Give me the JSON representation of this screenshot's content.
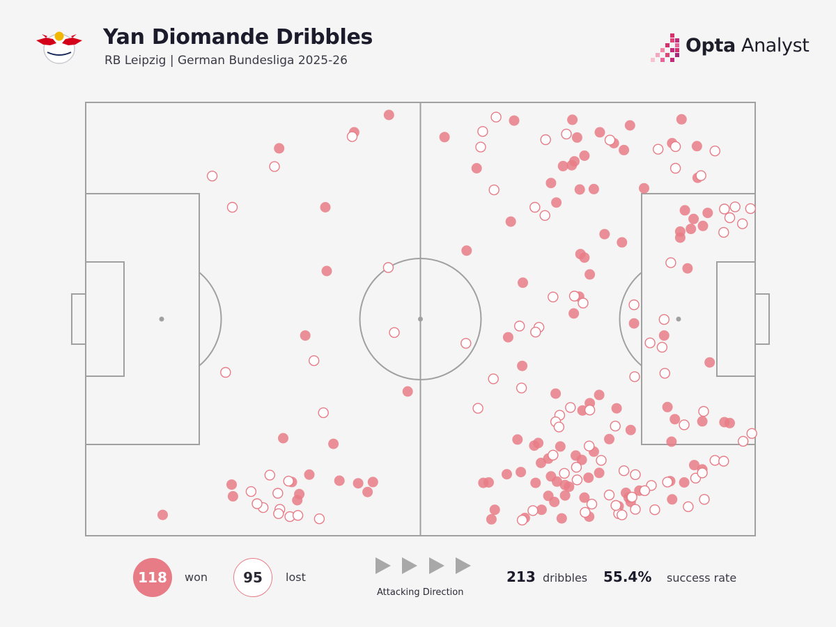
{
  "header": {
    "title": "Yan Diomande Dribbles",
    "subtitle": "RB Leipzig | German Bundesliga 2025-26",
    "club_logo": "rb-leipzig-crest",
    "brand": {
      "part1": "Opta",
      "part2": " Analyst",
      "icon": "opta-pixel-logo"
    }
  },
  "colors": {
    "won_fill": "#e77c86",
    "lost_stroke": "#e77c86",
    "pitch_line": "#a0a0a0",
    "background": "#f5f5f5",
    "brand_magenta": "#cf2f77"
  },
  "footer": {
    "won_count": "118",
    "won_label": "won",
    "lost_count": "95",
    "lost_label": "lost",
    "direction_label": "Attacking Direction",
    "direction_icon": "triangle-right-icon",
    "total_dribbles": "213",
    "total_label": "dribbles",
    "success_rate": "55.4%",
    "success_label": "success rate"
  },
  "chart_data": {
    "type": "scatter",
    "title": "Yan Diomande Dribbles",
    "xlim": [
      0,
      100
    ],
    "ylim": [
      0,
      100
    ],
    "grid": false,
    "series": [
      {
        "name": "won",
        "marker": "filled-circle",
        "points": [
          [
            45.3,
            97.1
          ],
          [
            40.1,
            93.1
          ],
          [
            28.9,
            89.4
          ],
          [
            11.5,
            4.8
          ],
          [
            35.8,
            75.8
          ],
          [
            36.0,
            61.1
          ],
          [
            48.1,
            33.3
          ],
          [
            32.8,
            46.2
          ],
          [
            29.5,
            22.5
          ],
          [
            37.0,
            21.2
          ],
          [
            21.8,
            11.8
          ],
          [
            22.0,
            9.1
          ],
          [
            30.8,
            12.4
          ],
          [
            33.4,
            14.1
          ],
          [
            31.6,
            8.2
          ],
          [
            31.9,
            9.6
          ],
          [
            37.9,
            12.7
          ],
          [
            40.7,
            12.1
          ],
          [
            42.9,
            12.4
          ],
          [
            42.1,
            10.1
          ],
          [
            53.6,
            92.0
          ],
          [
            64.0,
            95.8
          ],
          [
            72.7,
            96.0
          ],
          [
            76.8,
            93.1
          ],
          [
            89.0,
            96.1
          ],
          [
            81.3,
            94.7
          ],
          [
            73.4,
            91.9
          ],
          [
            78.9,
            90.6
          ],
          [
            80.4,
            89.0
          ],
          [
            74.5,
            87.7
          ],
          [
            72.6,
            85.5
          ],
          [
            71.3,
            85.3
          ],
          [
            73.0,
            86.4
          ],
          [
            87.6,
            90.6
          ],
          [
            91.3,
            89.9
          ],
          [
            83.4,
            80.2
          ],
          [
            73.8,
            79.9
          ],
          [
            58.4,
            84.8
          ],
          [
            69.5,
            81.4
          ],
          [
            91.4,
            82.6
          ],
          [
            75.9,
            80.0
          ],
          [
            70.3,
            76.9
          ],
          [
            63.5,
            72.5
          ],
          [
            77.5,
            69.6
          ],
          [
            89.5,
            75.1
          ],
          [
            90.8,
            73.1
          ],
          [
            92.9,
            74.5
          ],
          [
            92.2,
            71.5
          ],
          [
            88.8,
            70.2
          ],
          [
            88.8,
            68.8
          ],
          [
            90.4,
            70.8
          ],
          [
            80.1,
            67.7
          ],
          [
            56.9,
            65.8
          ],
          [
            73.9,
            65.0
          ],
          [
            74.5,
            64.2
          ],
          [
            75.3,
            60.3
          ],
          [
            65.3,
            58.4
          ],
          [
            89.9,
            61.7
          ],
          [
            73.7,
            55.2
          ],
          [
            72.9,
            51.3
          ],
          [
            81.9,
            49.0
          ],
          [
            63.1,
            45.8
          ],
          [
            86.4,
            46.2
          ],
          [
            93.2,
            40.0
          ],
          [
            65.2,
            39.2
          ],
          [
            70.2,
            32.8
          ],
          [
            76.7,
            32.5
          ],
          [
            75.3,
            30.6
          ],
          [
            79.3,
            29.4
          ],
          [
            74.2,
            28.9
          ],
          [
            86.9,
            29.7
          ],
          [
            88.0,
            26.9
          ],
          [
            92.1,
            26.4
          ],
          [
            96.2,
            26.0
          ],
          [
            95.4,
            26.2
          ],
          [
            64.5,
            22.2
          ],
          [
            67.6,
            21.4
          ],
          [
            67.0,
            20.8
          ],
          [
            78.2,
            22.3
          ],
          [
            81.4,
            24.4
          ],
          [
            70.9,
            20.6
          ],
          [
            75.9,
            19.4
          ],
          [
            73.2,
            18.5
          ],
          [
            74.1,
            17.5
          ],
          [
            87.5,
            21.7
          ],
          [
            90.9,
            16.3
          ],
          [
            92.1,
            15.3
          ],
          [
            65.0,
            14.7
          ],
          [
            62.9,
            14.2
          ],
          [
            68.0,
            16.8
          ],
          [
            69.1,
            17.8
          ],
          [
            69.5,
            13.7
          ],
          [
            76.7,
            14.5
          ],
          [
            75.1,
            13.4
          ],
          [
            70.4,
            12.5
          ],
          [
            67.2,
            12.2
          ],
          [
            60.2,
            12.3
          ],
          [
            59.4,
            12.2
          ],
          [
            71.6,
            11.7
          ],
          [
            72.2,
            11.3
          ],
          [
            69.1,
            9.2
          ],
          [
            70.0,
            7.8
          ],
          [
            71.6,
            9.3
          ],
          [
            74.5,
            8.8
          ],
          [
            81.1,
            8.8
          ],
          [
            81.4,
            7.8
          ],
          [
            87.6,
            8.4
          ],
          [
            89.4,
            12.3
          ],
          [
            80.7,
            9.9
          ],
          [
            82.7,
            10.4
          ],
          [
            68.1,
            6.0
          ],
          [
            65.6,
            4.1
          ],
          [
            61.1,
            6.0
          ],
          [
            60.6,
            3.8
          ],
          [
            71.1,
            4.0
          ],
          [
            75.2,
            4.4
          ],
          [
            79.6,
            6.8
          ],
          [
            87.3,
            12.6
          ]
        ]
      },
      {
        "name": "lost",
        "marker": "hollow-circle",
        "points": [
          [
            39.8,
            92.1
          ],
          [
            28.2,
            85.2
          ],
          [
            18.9,
            83.0
          ],
          [
            21.9,
            75.8
          ],
          [
            45.2,
            61.9
          ],
          [
            46.1,
            46.9
          ],
          [
            34.1,
            40.4
          ],
          [
            20.9,
            37.7
          ],
          [
            35.5,
            28.4
          ],
          [
            27.5,
            14.0
          ],
          [
            30.3,
            12.6
          ],
          [
            28.7,
            9.8
          ],
          [
            24.7,
            10.2
          ],
          [
            26.5,
            6.5
          ],
          [
            25.6,
            7.4
          ],
          [
            29.0,
            6.1
          ],
          [
            28.8,
            5.1
          ],
          [
            30.5,
            4.4
          ],
          [
            31.7,
            4.7
          ],
          [
            34.9,
            3.9
          ],
          [
            61.3,
            96.6
          ],
          [
            59.3,
            93.3
          ],
          [
            71.8,
            92.7
          ],
          [
            68.7,
            91.4
          ],
          [
            85.5,
            89.2
          ],
          [
            88.1,
            89.8
          ],
          [
            78.3,
            91.3
          ],
          [
            94.0,
            88.8
          ],
          [
            59.0,
            89.7
          ],
          [
            88.1,
            84.8
          ],
          [
            91.9,
            83.1
          ],
          [
            61.0,
            79.8
          ],
          [
            68.6,
            73.9
          ],
          [
            67.1,
            75.8
          ],
          [
            95.4,
            75.4
          ],
          [
            97.0,
            75.9
          ],
          [
            99.3,
            75.5
          ],
          [
            96.2,
            73.4
          ],
          [
            98.1,
            72.0
          ],
          [
            95.3,
            70.0
          ],
          [
            87.4,
            63.0
          ],
          [
            73.0,
            55.3
          ],
          [
            69.8,
            55.1
          ],
          [
            74.3,
            53.7
          ],
          [
            81.9,
            53.3
          ],
          [
            86.4,
            49.9
          ],
          [
            67.7,
            48.1
          ],
          [
            64.8,
            48.4
          ],
          [
            84.3,
            44.5
          ],
          [
            86.1,
            43.5
          ],
          [
            67.2,
            47.0
          ],
          [
            56.8,
            44.4
          ],
          [
            60.9,
            36.2
          ],
          [
            65.1,
            34.1
          ],
          [
            86.5,
            37.5
          ],
          [
            82.0,
            36.7
          ],
          [
            58.6,
            29.4
          ],
          [
            70.8,
            27.8
          ],
          [
            72.4,
            29.6
          ],
          [
            75.3,
            29.0
          ],
          [
            92.3,
            28.7
          ],
          [
            89.4,
            25.6
          ],
          [
            99.5,
            23.6
          ],
          [
            98.2,
            21.8
          ],
          [
            79.1,
            25.3
          ],
          [
            70.2,
            26.3
          ],
          [
            70.7,
            25.1
          ],
          [
            75.2,
            20.7
          ],
          [
            69.8,
            18.6
          ],
          [
            73.3,
            15.8
          ],
          [
            77.0,
            17.4
          ],
          [
            71.5,
            14.4
          ],
          [
            73.4,
            12.9
          ],
          [
            80.4,
            15.0
          ],
          [
            82.1,
            14.1
          ],
          [
            84.5,
            11.6
          ],
          [
            86.9,
            12.4
          ],
          [
            83.5,
            10.4
          ],
          [
            91.1,
            13.3
          ],
          [
            92.1,
            14.5
          ],
          [
            94.0,
            17.4
          ],
          [
            95.3,
            17.2
          ],
          [
            92.4,
            8.4
          ],
          [
            90.0,
            6.7
          ],
          [
            85.0,
            6.0
          ],
          [
            81.6,
            8.9
          ],
          [
            79.6,
            5.1
          ],
          [
            80.1,
            4.8
          ],
          [
            82.1,
            6.1
          ],
          [
            78.2,
            9.4
          ],
          [
            79.2,
            7.0
          ],
          [
            74.6,
            5.4
          ],
          [
            75.6,
            7.3
          ],
          [
            66.8,
            5.8
          ],
          [
            65.2,
            3.6
          ]
        ]
      }
    ]
  }
}
